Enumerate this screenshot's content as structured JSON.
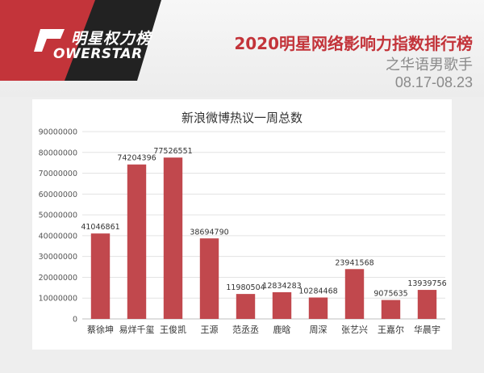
{
  "header": {
    "logo_cn": "明星权力榜",
    "logo_en": "OWERSTAR",
    "title": "2020明星网络影响力指数排行榜",
    "subtitle": "之华语男歌手",
    "date_range": "08.17-08.23"
  },
  "colors": {
    "accent": "#c3343a",
    "bar": "#c1484d",
    "logo_dark": "#222222"
  },
  "chart_data": {
    "type": "bar",
    "title": "新浪微博热议一周总数",
    "xlabel": "",
    "ylabel": "",
    "categories": [
      "蔡徐坤",
      "易烊千玺",
      "王俊凯",
      "王源",
      "范丞丞",
      "鹿晗",
      "周深",
      "张艺兴",
      "王嘉尔",
      "华晨宇"
    ],
    "values": [
      41046861,
      74204396,
      77526551,
      38694790,
      11980504,
      12834283,
      10284468,
      23941568,
      9075635,
      13939756
    ],
    "data_labels": [
      "41046861",
      "74204396",
      "77526551",
      "38694790",
      "11980504",
      "12834283",
      "10284468",
      "23941568",
      "9075635",
      "13939756"
    ],
    "ylim": [
      0,
      90000000
    ],
    "yticks": [
      "0",
      "10000000",
      "20000000",
      "30000000",
      "40000000",
      "50000000",
      "60000000",
      "70000000",
      "80000000",
      "90000000"
    ],
    "grid": true,
    "legend": "none"
  }
}
